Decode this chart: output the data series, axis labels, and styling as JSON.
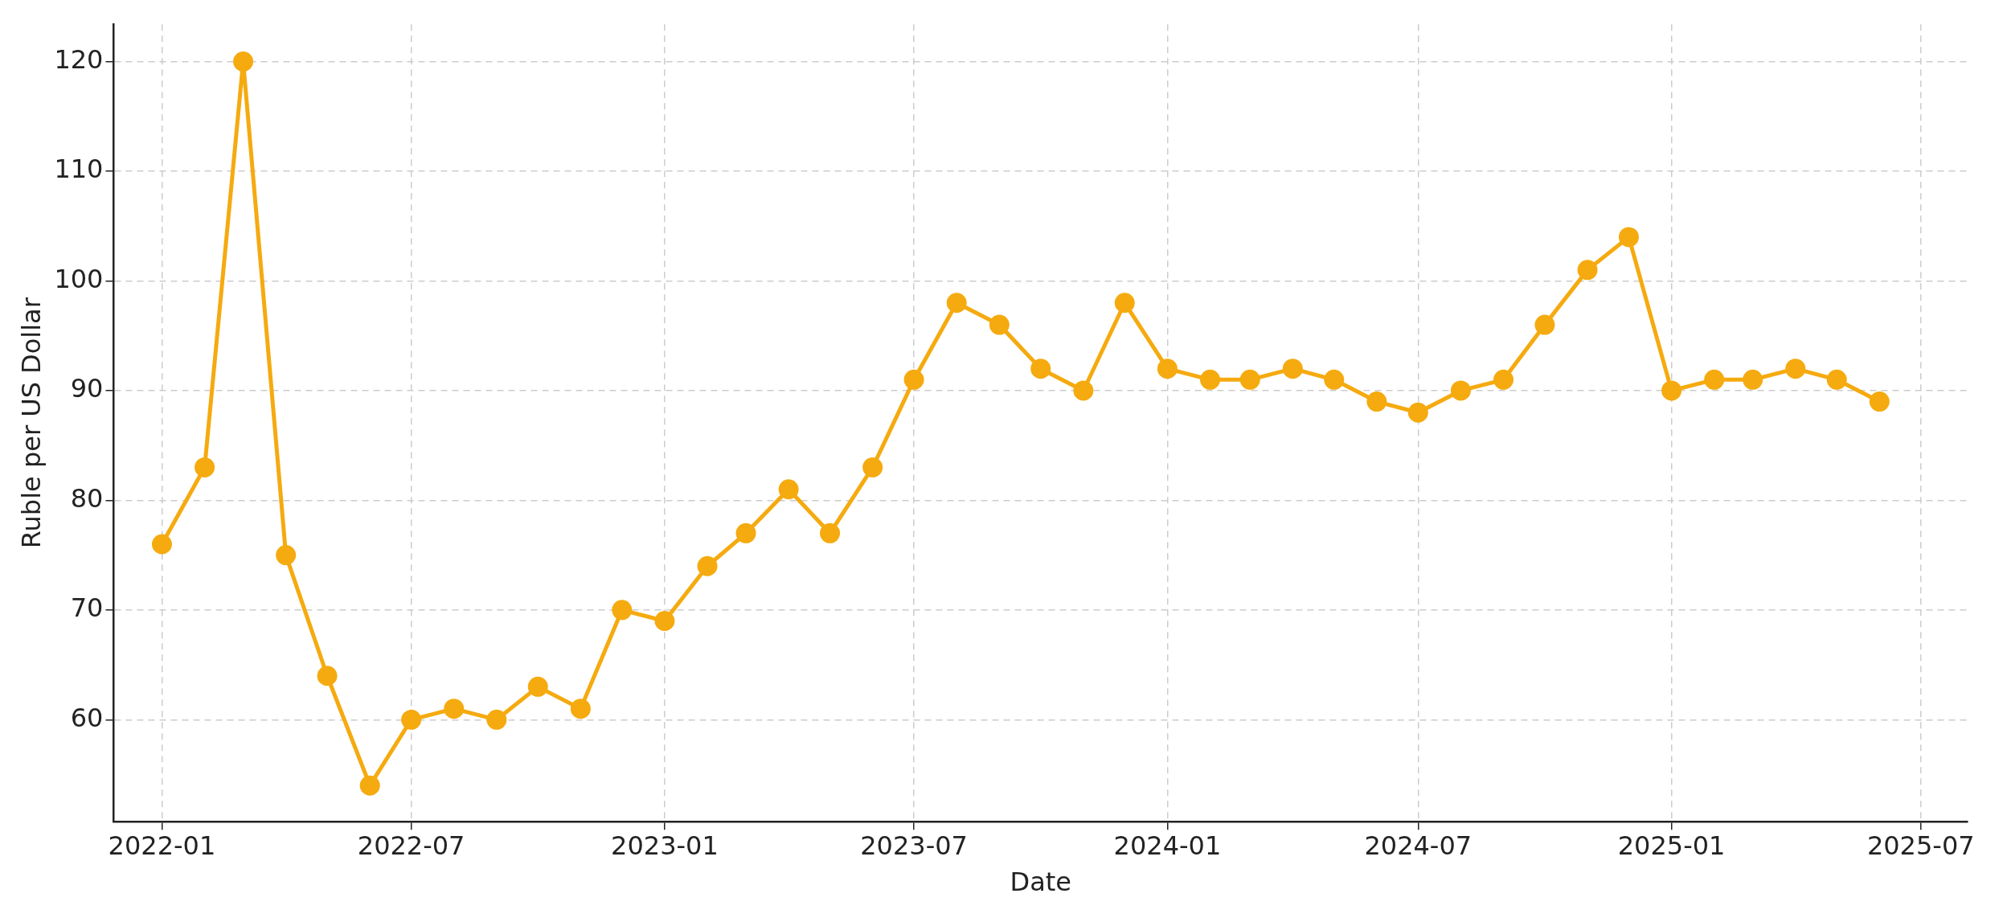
{
  "chart_data": {
    "type": "line",
    "xlabel": "Date",
    "ylabel": "Ruble per US Dollar",
    "x": [
      "2022-01",
      "2022-02",
      "2022-03",
      "2022-04",
      "2022-05",
      "2022-06",
      "2022-07",
      "2022-08",
      "2022-09",
      "2022-10",
      "2022-11",
      "2022-12",
      "2023-01",
      "2023-02",
      "2023-03",
      "2023-04",
      "2023-05",
      "2023-06",
      "2023-07",
      "2023-08",
      "2023-09",
      "2023-10",
      "2023-11",
      "2023-12",
      "2024-01",
      "2024-02",
      "2024-03",
      "2024-04",
      "2024-05",
      "2024-06",
      "2024-07",
      "2024-08",
      "2024-09",
      "2024-10",
      "2024-11",
      "2024-12",
      "2025-01",
      "2025-02",
      "2025-03",
      "2025-04",
      "2025-05",
      "2025-06"
    ],
    "series": [
      {
        "color": "#f5aa0f",
        "values": [
          76,
          83,
          120,
          75,
          64,
          54,
          60,
          61,
          60,
          63,
          61,
          70,
          69,
          74,
          77,
          81,
          77,
          83,
          91,
          98,
          96,
          92,
          90,
          98,
          92,
          91,
          91,
          92,
          91,
          89,
          88,
          90,
          91,
          96,
          101,
          104,
          90,
          91,
          91,
          92,
          91,
          89
        ]
      }
    ],
    "xlim": [
      "2021-11-27",
      "2025-08-04"
    ],
    "xticks": [
      "2022-01",
      "2022-07",
      "2023-01",
      "2023-07",
      "2024-01",
      "2024-07",
      "2025-01",
      "2025-07"
    ],
    "ylim": [
      50.7,
      123.4
    ],
    "yticks": [
      60,
      70,
      80,
      90,
      100,
      110,
      120
    ],
    "grid": true,
    "legend": false,
    "marker": "circle",
    "line_style": "solid"
  }
}
